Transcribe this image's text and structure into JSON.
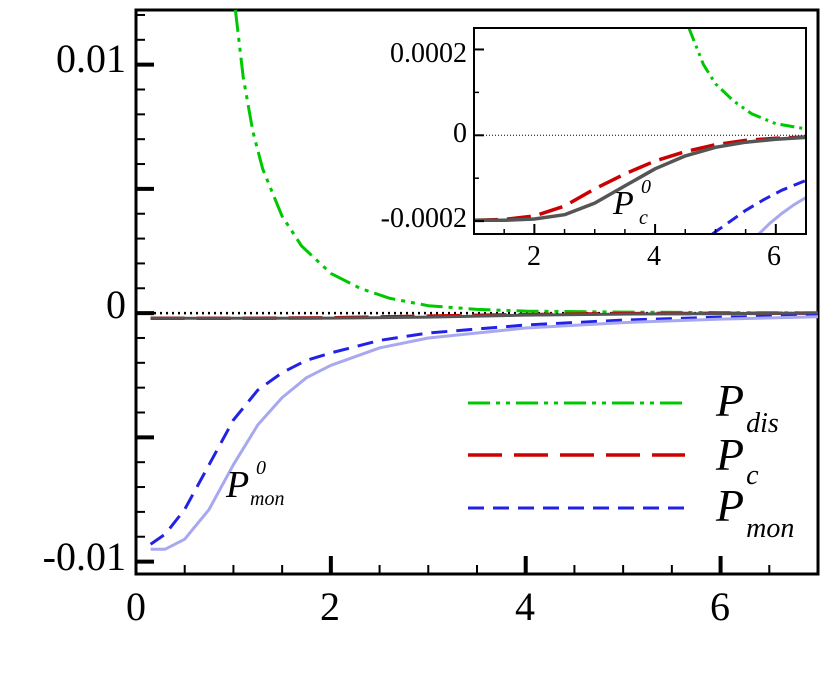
{
  "chart_data": [
    {
      "type": "line",
      "title": "",
      "xlabel": "",
      "ylabel": "",
      "xlim": [
        0,
        7
      ],
      "ylim": [
        -0.0105,
        0.0122
      ],
      "x_ticks": [
        0,
        2,
        4,
        6
      ],
      "x_tick_labels": [
        "0",
        "2",
        "4",
        "6"
      ],
      "y_ticks": [
        -0.01,
        0,
        0.01
      ],
      "y_tick_labels": [
        "-0.01",
        "0",
        "0.01"
      ],
      "grid": false,
      "legend_position": "lower-right",
      "legend": [
        {
          "symbol": "P",
          "subscript": "dis",
          "color": "#00c800",
          "dash": "dash-dot-dot"
        },
        {
          "symbol": "P",
          "subscript": "c",
          "color": "#cc0000",
          "dash": "long-dash"
        },
        {
          "symbol": "P",
          "subscript": "mon",
          "color": "#2222e6",
          "dash": "dash"
        }
      ],
      "annotation": {
        "symbol": "P",
        "subscript": "mon",
        "superscript": "0"
      },
      "reference_line": {
        "y": 0,
        "style": "dotted",
        "color": "#000000"
      },
      "series": [
        {
          "id": "P_dis",
          "color": "#00c800",
          "dash": "dash-dot-dot",
          "x": [
            1.02,
            1.1,
            1.2,
            1.3,
            1.5,
            1.7,
            2.0,
            2.3,
            2.6,
            3.0,
            3.5,
            4.0,
            5.0,
            6.0,
            7.0
          ],
          "y": [
            0.0122,
            0.0095,
            0.0073,
            0.0058,
            0.0039,
            0.0027,
            0.0016,
            0.001,
            0.0006,
            0.0003,
            0.00015,
            8e-05,
            4e-05,
            2e-05,
            1e-05
          ]
        },
        {
          "id": "P_c",
          "color": "#cc0000",
          "dash": "long-dash",
          "x": [
            0.15,
            1.0,
            2.0,
            3.0,
            4.0,
            5.0,
            6.0,
            7.0
          ],
          "y": [
            -0.00021,
            -0.00021,
            -0.00019,
            -0.00012,
            -6e-05,
            -2e-05,
            -1e-05,
            0
          ]
        },
        {
          "id": "P_c0",
          "color": "#555555",
          "dash": "solid",
          "x": [
            0.15,
            1.0,
            2.0,
            3.0,
            4.0,
            5.0,
            6.0,
            7.0
          ],
          "y": [
            -0.00021,
            -0.00021,
            -0.0002,
            -0.00016,
            -8e-05,
            -4e-05,
            -2e-05,
            0
          ]
        },
        {
          "id": "P_mon",
          "color": "#2222e6",
          "dash": "dash",
          "x": [
            0.15,
            0.3,
            0.5,
            0.75,
            1.0,
            1.25,
            1.5,
            1.75,
            2.0,
            2.5,
            3.0,
            4.0,
            5.0,
            6.0,
            7.0
          ],
          "y": [
            -0.0093,
            -0.0089,
            -0.0079,
            -0.0061,
            -0.0043,
            -0.0031,
            -0.0024,
            -0.0019,
            -0.0016,
            -0.0011,
            -0.0008,
            -0.00048,
            -0.00028,
            -0.00016,
            -0.0001
          ]
        },
        {
          "id": "P_mon0",
          "color": "#a8a8f0",
          "dash": "solid",
          "x": [
            0.15,
            0.3,
            0.5,
            0.75,
            1.0,
            1.25,
            1.5,
            1.75,
            2.0,
            2.5,
            3.0,
            4.0,
            5.0,
            6.0,
            7.0
          ],
          "y": [
            -0.0095,
            -0.0095,
            -0.0091,
            -0.0079,
            -0.0061,
            -0.0045,
            -0.0034,
            -0.0026,
            -0.0021,
            -0.0014,
            -0.001,
            -0.0006,
            -0.00038,
            -0.00024,
            -0.00015
          ]
        }
      ]
    },
    {
      "type": "line",
      "title": "",
      "xlabel": "",
      "ylabel": "",
      "xlim": [
        1.0,
        6.5
      ],
      "ylim": [
        -0.00023,
        0.00025
      ],
      "x_ticks": [
        2,
        4,
        6
      ],
      "x_tick_labels": [
        "2",
        "4",
        "6"
      ],
      "y_ticks": [
        -0.0002,
        0,
        0.0002
      ],
      "y_tick_labels": [
        "-0.0002",
        "0",
        "0.0002"
      ],
      "grid": false,
      "annotation": {
        "symbol": "P",
        "subscript": "c",
        "superscript": "0"
      },
      "reference_line": {
        "y": 0,
        "style": "dotted",
        "color": "#000000"
      },
      "series": [
        {
          "id": "P_dis",
          "color": "#00c800",
          "dash": "dash-dot-dot",
          "x": [
            4.56,
            4.8,
            5.0,
            5.3,
            5.6,
            6.0,
            6.5
          ],
          "y": [
            0.00025,
            0.000165,
            0.00012,
            8e-05,
            5e-05,
            2.7e-05,
            1.5e-05
          ]
        },
        {
          "id": "P_c",
          "color": "#cc0000",
          "dash": "long-dash",
          "x": [
            1.0,
            1.5,
            2.0,
            2.5,
            3.0,
            3.5,
            4.0,
            4.5,
            5.0,
            5.5,
            6.0,
            6.5
          ],
          "y": [
            -0.000198,
            -0.000196,
            -0.000188,
            -0.000165,
            -0.000125,
            -9e-05,
            -6e-05,
            -3.8e-05,
            -2.2e-05,
            -1.2e-05,
            -7e-06,
            -4e-06
          ]
        },
        {
          "id": "P_c0",
          "color": "#555555",
          "dash": "solid",
          "x": [
            1.0,
            1.5,
            2.0,
            2.5,
            3.0,
            3.5,
            4.0,
            4.5,
            5.0,
            5.5,
            6.0,
            6.5
          ],
          "y": [
            -0.000198,
            -0.000198,
            -0.000195,
            -0.000185,
            -0.000158,
            -0.000118,
            -7.8e-05,
            -4.8e-05,
            -2.8e-05,
            -1.6e-05,
            -9e-06,
            -5e-06
          ]
        },
        {
          "id": "P_mon",
          "color": "#2222e6",
          "dash": "dash",
          "x": [
            4.95,
            5.2,
            5.5,
            5.8,
            6.1,
            6.5
          ],
          "y": [
            -0.00023,
            -0.000205,
            -0.000175,
            -0.00015,
            -0.000128,
            -0.000105
          ]
        },
        {
          "id": "P_mon0",
          "color": "#a8a8f0",
          "dash": "solid",
          "x": [
            5.72,
            5.9,
            6.1,
            6.3,
            6.5
          ],
          "y": [
            -0.00023,
            -0.000205,
            -0.000182,
            -0.000162,
            -0.000145
          ]
        }
      ]
    }
  ]
}
